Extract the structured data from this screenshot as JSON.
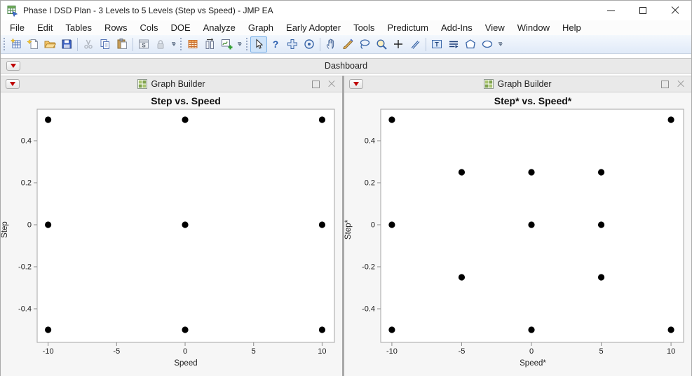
{
  "window": {
    "title": "Phase I DSD Plan - 3 Levels to 5 Levels (Step vs Speed) - JMP EA"
  },
  "menu": {
    "items": [
      "File",
      "Edit",
      "Tables",
      "Rows",
      "Cols",
      "DOE",
      "Analyze",
      "Graph",
      "Early Adopter",
      "Tools",
      "Predictum",
      "Add-Ins",
      "View",
      "Window",
      "Help"
    ]
  },
  "toolbar": {
    "groups": [
      {
        "items": [
          {
            "icon": "new-data-table-icon"
          },
          {
            "icon": "new-journal-icon"
          },
          {
            "icon": "open-icon"
          },
          {
            "icon": "save-icon"
          },
          {
            "sep": true
          },
          {
            "icon": "cut-icon",
            "disabled": true
          },
          {
            "icon": "copy-icon"
          },
          {
            "icon": "paste-icon"
          },
          {
            "sep": true
          },
          {
            "icon": "script-window-icon"
          },
          {
            "icon": "lock-icon",
            "disabled": true
          },
          {
            "overflow": true
          }
        ]
      },
      {
        "items": [
          {
            "icon": "data-table-icon"
          },
          {
            "icon": "columns-icon"
          },
          {
            "icon": "graph-add-icon"
          },
          {
            "overflow": true
          }
        ]
      },
      {
        "items": [
          {
            "icon": "arrow-cursor-icon",
            "selected": true
          },
          {
            "icon": "help-icon"
          },
          {
            "icon": "crosshair-icon"
          },
          {
            "icon": "bullseye-icon"
          },
          {
            "sep": true
          },
          {
            "icon": "hand-icon"
          },
          {
            "icon": "paintbrush-icon"
          },
          {
            "icon": "lasso-icon"
          },
          {
            "icon": "magnifier-icon"
          },
          {
            "icon": "plus-icon"
          },
          {
            "icon": "pen-icon"
          },
          {
            "sep": true
          },
          {
            "icon": "annotate-text-icon"
          },
          {
            "icon": "annotate-lines-icon"
          },
          {
            "icon": "annotate-polygon-icon"
          },
          {
            "icon": "annotate-oval-icon"
          },
          {
            "overflow": true
          }
        ]
      }
    ]
  },
  "dashboard": {
    "label": "Dashboard"
  },
  "panels": [
    {
      "title": "Graph Builder"
    },
    {
      "title": "Graph Builder"
    }
  ],
  "colors": {
    "point": "#000000",
    "plot_frame": "#a6a6a6",
    "tick": "#8c8c8c",
    "panel_header_bg": "#e9e9e9",
    "red_triangle": "#c00000",
    "toolbar_selected_bg": "#cfe4fa"
  },
  "chart_data": [
    {
      "type": "scatter",
      "title": "Step vs. Speed",
      "xlabel": "Speed",
      "ylabel": "Step",
      "xlim": [
        -10.8,
        10.9
      ],
      "ylim": [
        -0.56,
        0.55
      ],
      "xticks": [
        -10,
        -5,
        0,
        5,
        10
      ],
      "yticks": [
        0.4,
        0.2,
        0,
        -0.2,
        -0.4
      ],
      "grid": false,
      "marker_color": "#000000",
      "points": [
        [
          -10,
          0.5
        ],
        [
          0,
          0.5
        ],
        [
          10,
          0.5
        ],
        [
          -10,
          0
        ],
        [
          0,
          0
        ],
        [
          10,
          0
        ],
        [
          -10,
          -0.5
        ],
        [
          0,
          -0.5
        ],
        [
          10,
          -0.5
        ]
      ]
    },
    {
      "type": "scatter",
      "title": "Step* vs. Speed*",
      "xlabel": "Speed*",
      "ylabel": "Step*",
      "xlim": [
        -10.8,
        10.9
      ],
      "ylim": [
        -0.56,
        0.55
      ],
      "xticks": [
        -10,
        -5,
        0,
        5,
        10
      ],
      "yticks": [
        0.4,
        0.2,
        0,
        -0.2,
        -0.4
      ],
      "grid": false,
      "marker_color": "#000000",
      "points": [
        [
          -10,
          0.5
        ],
        [
          10,
          0.5
        ],
        [
          -5,
          0.25
        ],
        [
          0,
          0.25
        ],
        [
          5,
          0.25
        ],
        [
          -10,
          0
        ],
        [
          0,
          0
        ],
        [
          5,
          0
        ],
        [
          -5,
          -0.25
        ],
        [
          5,
          -0.25
        ],
        [
          -10,
          -0.5
        ],
        [
          0,
          -0.5
        ],
        [
          10,
          -0.5
        ]
      ]
    }
  ]
}
